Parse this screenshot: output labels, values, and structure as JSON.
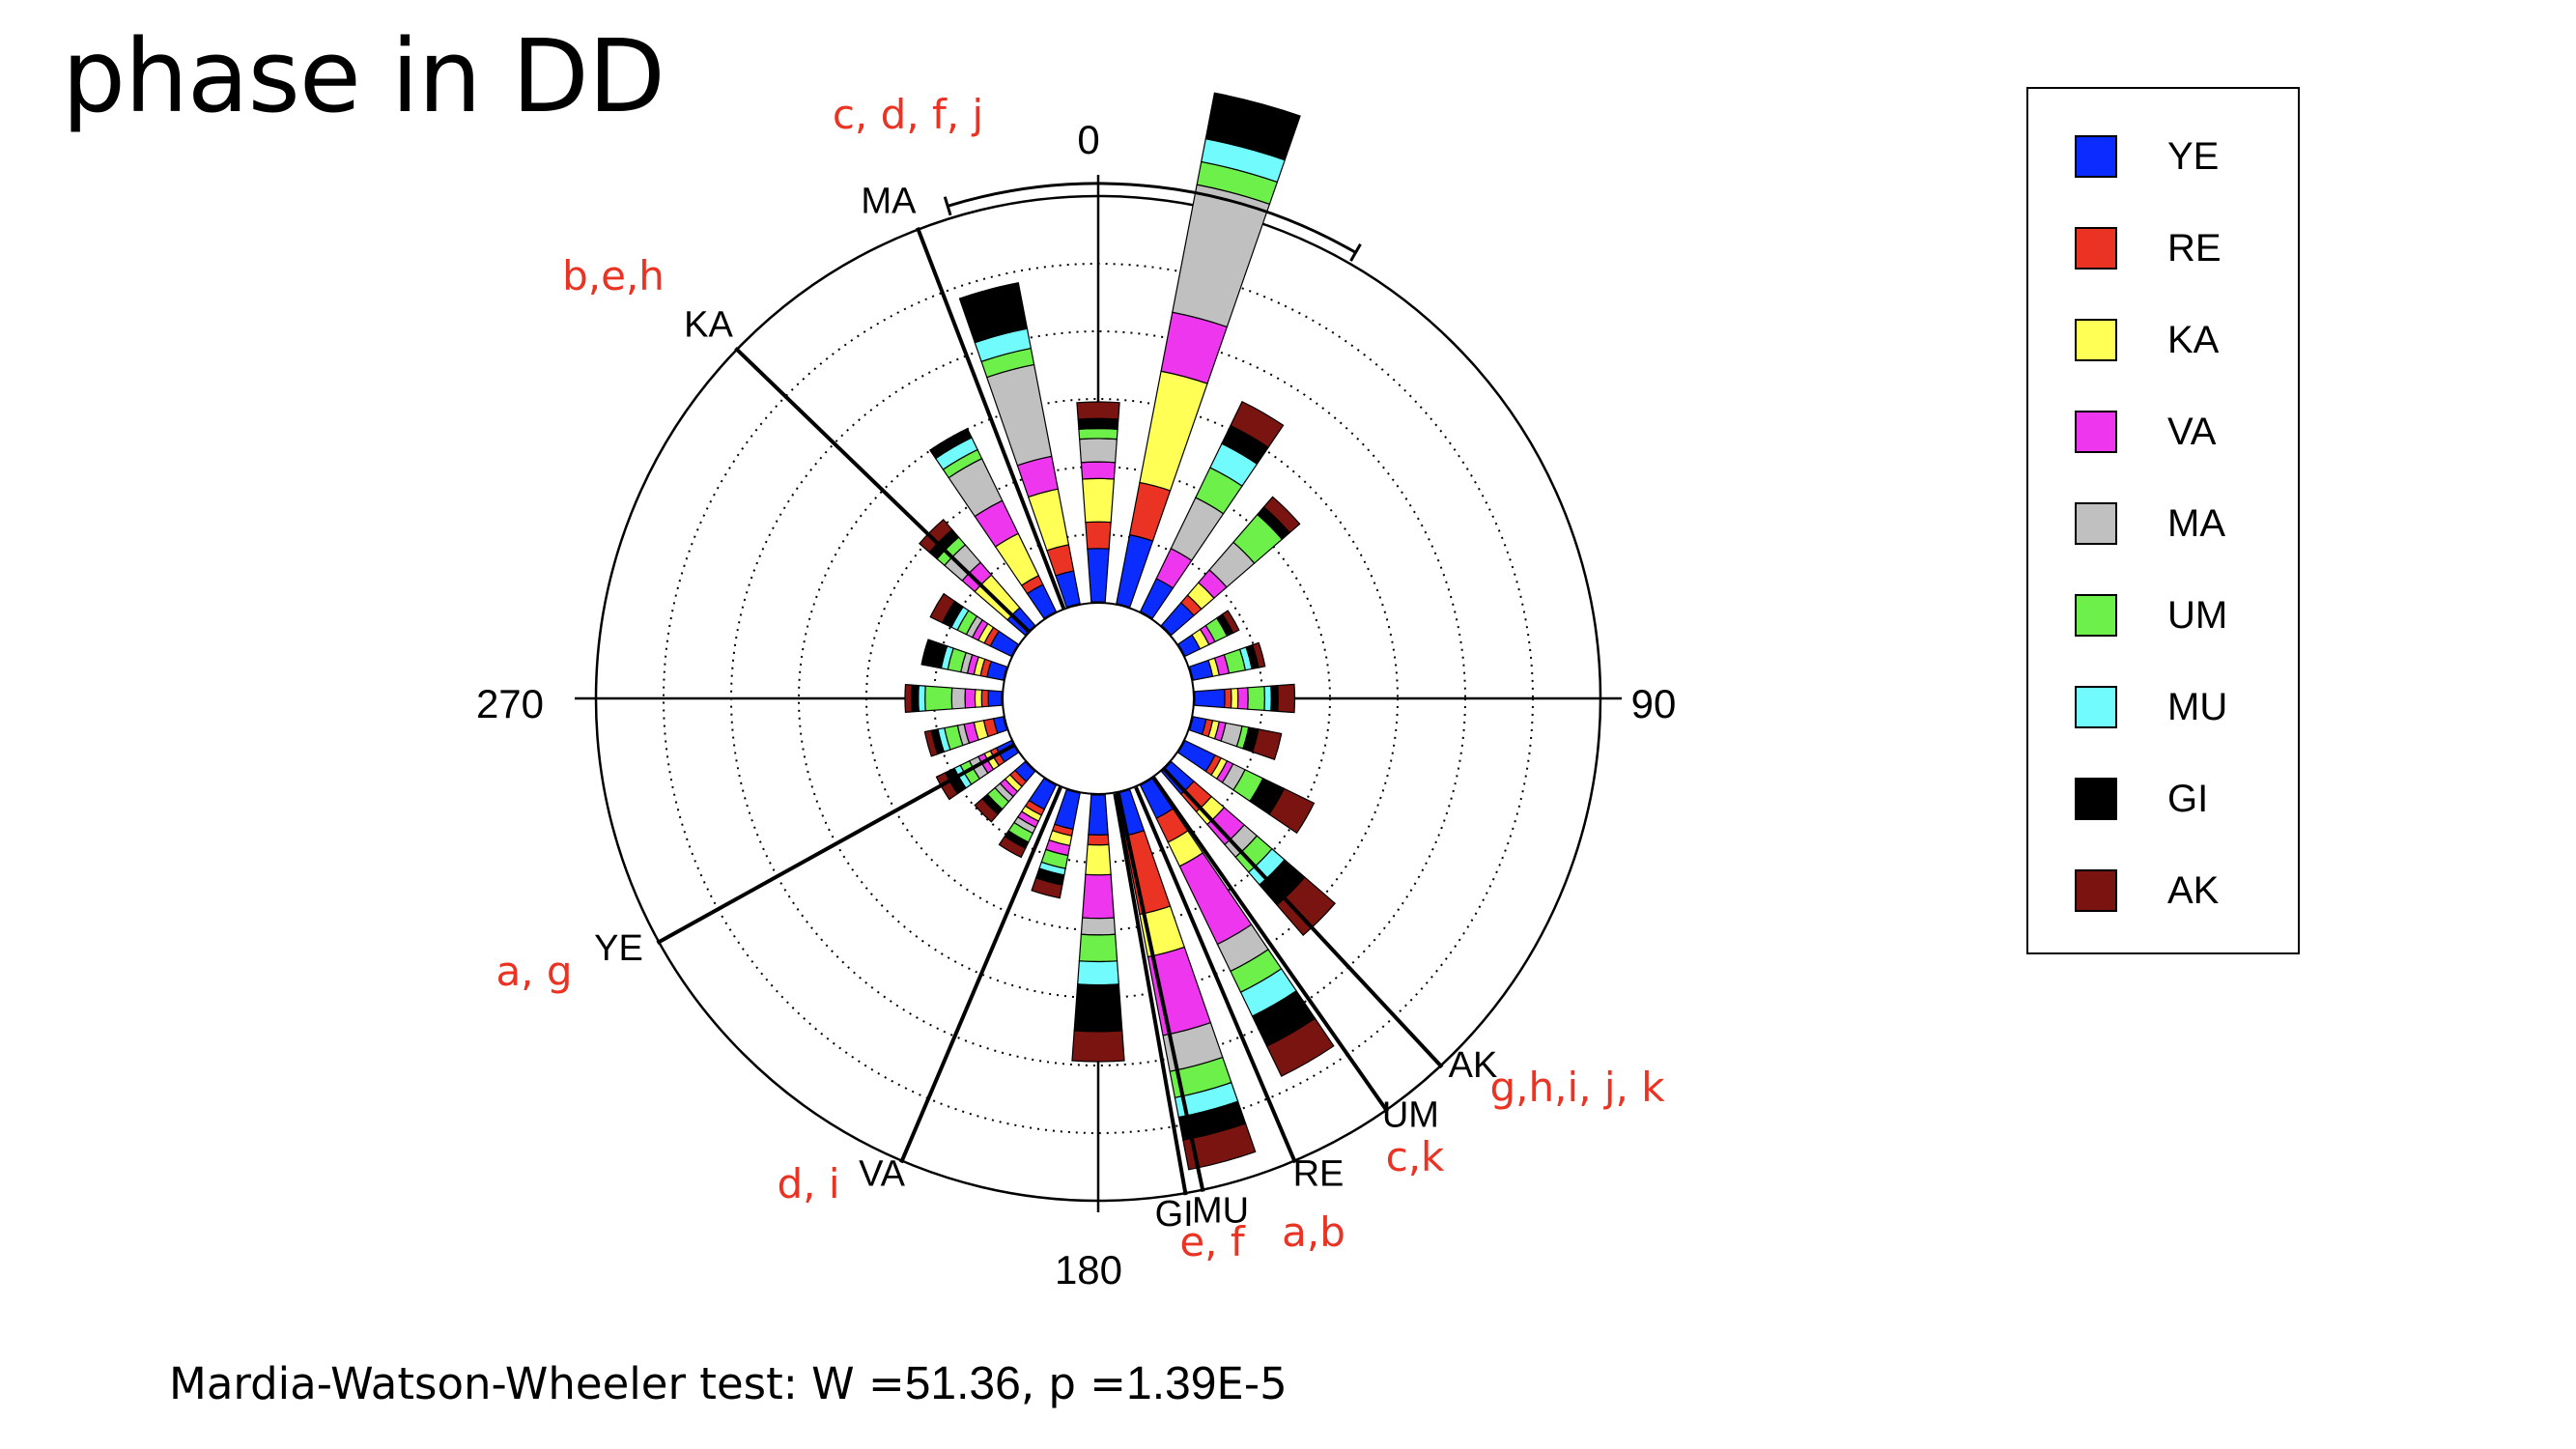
{
  "slide": {
    "title": "phase in DD",
    "footer_prefix": "Mardia-Watson-Wheeler test: W =",
    "footer_w": "51.36",
    "footer_mid": ", p =",
    "footer_p_mantissa": "1.39",
    "footer_p_exp": "E-5"
  },
  "colors": {
    "YE": "#0a2cff",
    "RE": "#ea3323",
    "KA": "#ffff55",
    "VA": "#ee36ee",
    "MA": "#c0c0c0",
    "UM": "#6ef04a",
    "MU": "#72fbfd",
    "GI": "#000000",
    "AK": "#7a1410",
    "annotation": "#ea3323"
  },
  "legend": [
    {
      "label": "YE",
      "color": "#0a2cff"
    },
    {
      "label": "RE",
      "color": "#ea3323"
    },
    {
      "label": "KA",
      "color": "#ffff55"
    },
    {
      "label": "VA",
      "color": "#ee36ee"
    },
    {
      "label": "MA",
      "color": "#c0c0c0"
    },
    {
      "label": "UM",
      "color": "#6ef04a"
    },
    {
      "label": "MU",
      "color": "#72fbfd"
    },
    {
      "label": "GI",
      "color": "#000000"
    },
    {
      "label": "AK",
      "color": "#7a1410"
    }
  ],
  "chart_data": {
    "type": "polar-stacked-bar",
    "title": "",
    "angle_labels": [
      {
        "angle": 0,
        "text": "0"
      },
      {
        "angle": 90,
        "text": "90"
      },
      {
        "angle": 180,
        "text": "180"
      },
      {
        "angle": 270,
        "text": "270"
      }
    ],
    "series_order": [
      "YE",
      "RE",
      "KA",
      "VA",
      "MA",
      "UM",
      "MU",
      "GI",
      "AK"
    ],
    "bin_width_deg": 15,
    "bins": [
      {
        "angle": 0,
        "segments": [
          [
            "YE",
            16
          ],
          [
            "RE",
            8
          ],
          [
            "KA",
            13
          ],
          [
            "VA",
            5
          ],
          [
            "MA",
            7
          ],
          [
            "UM",
            3
          ],
          [
            "GI",
            3
          ],
          [
            "AK",
            5
          ]
        ]
      },
      {
        "angle": 15,
        "segments": [
          [
            "YE",
            21
          ],
          [
            "RE",
            16
          ],
          [
            "KA",
            34
          ],
          [
            "VA",
            18
          ],
          [
            "MA",
            39
          ],
          [
            "UM",
            7
          ],
          [
            "MU",
            7
          ],
          [
            "GI",
            14
          ]
        ]
      },
      {
        "angle": 30,
        "segments": [
          [
            "YE",
            11
          ],
          [
            "VA",
            10
          ],
          [
            "MA",
            17
          ],
          [
            "UM",
            10
          ],
          [
            "MU",
            8
          ],
          [
            "GI",
            6
          ],
          [
            "AK",
            8
          ]
        ]
      },
      {
        "angle": 45,
        "segments": [
          [
            "YE",
            9
          ],
          [
            "RE",
            3
          ],
          [
            "KA",
            5
          ],
          [
            "VA",
            5
          ],
          [
            "MA",
            11
          ],
          [
            "UM",
            11
          ],
          [
            "GI",
            3
          ],
          [
            "AK",
            4
          ]
        ]
      },
      {
        "angle": 60,
        "segments": [
          [
            "YE",
            5
          ],
          [
            "KA",
            3
          ],
          [
            "VA",
            2
          ],
          [
            "UM",
            4
          ],
          [
            "GI",
            2
          ],
          [
            "AK",
            2
          ]
        ]
      },
      {
        "angle": 75,
        "segments": [
          [
            "YE",
            6
          ],
          [
            "KA",
            2
          ],
          [
            "VA",
            3
          ],
          [
            "UM",
            5
          ],
          [
            "MU",
            2
          ],
          [
            "GI",
            2
          ],
          [
            "AK",
            2
          ]
        ]
      },
      {
        "angle": 90,
        "segments": [
          [
            "YE",
            9
          ],
          [
            "RE",
            2
          ],
          [
            "KA",
            2
          ],
          [
            "VA",
            3
          ],
          [
            "UM",
            5
          ],
          [
            "MU",
            2
          ],
          [
            "GI",
            2
          ],
          [
            "AK",
            5
          ]
        ]
      },
      {
        "angle": 105,
        "segments": [
          [
            "YE",
            4
          ],
          [
            "RE",
            2
          ],
          [
            "KA",
            2
          ],
          [
            "VA",
            2
          ],
          [
            "MA",
            5
          ],
          [
            "UM",
            2
          ],
          [
            "GI",
            3
          ],
          [
            "AK",
            7
          ]
        ]
      },
      {
        "angle": 120,
        "segments": [
          [
            "YE",
            10
          ],
          [
            "RE",
            2
          ],
          [
            "KA",
            2
          ],
          [
            "VA",
            2
          ],
          [
            "MA",
            4
          ],
          [
            "UM",
            6
          ],
          [
            "GI",
            7
          ],
          [
            "AK",
            10
          ]
        ]
      },
      {
        "angle": 135,
        "segments": [
          [
            "YE",
            9
          ],
          [
            "RE",
            7
          ],
          [
            "KA",
            5
          ],
          [
            "VA",
            8
          ],
          [
            "MA",
            5
          ],
          [
            "UM",
            6
          ],
          [
            "MU",
            5
          ],
          [
            "GI",
            8
          ],
          [
            "AK",
            12
          ]
        ]
      },
      {
        "angle": 150,
        "segments": [
          [
            "YE",
            11
          ],
          [
            "RE",
            8
          ],
          [
            "KA",
            8
          ],
          [
            "VA",
            26
          ],
          [
            "MA",
            9
          ],
          [
            "UM",
            7
          ],
          [
            "MU",
            8
          ],
          [
            "GI",
            10
          ],
          [
            "AK",
            10
          ]
        ]
      },
      {
        "angle": 165,
        "segments": [
          [
            "YE",
            13
          ],
          [
            "RE",
            24
          ],
          [
            "KA",
            13
          ],
          [
            "VA",
            24
          ],
          [
            "MA",
            11
          ],
          [
            "UM",
            8
          ],
          [
            "MU",
            6
          ],
          [
            "GI",
            7
          ],
          [
            "AK",
            9
          ]
        ]
      },
      {
        "angle": 180,
        "segments": [
          [
            "YE",
            12
          ],
          [
            "RE",
            3
          ],
          [
            "KA",
            9
          ],
          [
            "VA",
            13
          ],
          [
            "MA",
            5
          ],
          [
            "UM",
            8
          ],
          [
            "MU",
            7
          ],
          [
            "GI",
            14
          ],
          [
            "AK",
            9
          ]
        ]
      },
      {
        "angle": 195,
        "segments": [
          [
            "YE",
            11
          ],
          [
            "RE",
            2
          ],
          [
            "KA",
            3
          ],
          [
            "VA",
            3
          ],
          [
            "UM",
            4
          ],
          [
            "MU",
            2
          ],
          [
            "GI",
            3
          ],
          [
            "AK",
            4
          ]
        ]
      },
      {
        "angle": 210,
        "segments": [
          [
            "YE",
            8
          ],
          [
            "RE",
            2
          ],
          [
            "KA",
            2
          ],
          [
            "VA",
            2
          ],
          [
            "MA",
            2
          ],
          [
            "UM",
            3
          ],
          [
            "GI",
            2
          ],
          [
            "AK",
            3
          ]
        ]
      },
      {
        "angle": 225,
        "segments": [
          [
            "YE",
            4
          ],
          [
            "RE",
            2
          ],
          [
            "KA",
            2
          ],
          [
            "VA",
            2
          ],
          [
            "MA",
            2
          ],
          [
            "UM",
            3
          ],
          [
            "GI",
            2
          ],
          [
            "AK",
            3
          ]
        ]
      },
      {
        "angle": 240,
        "segments": [
          [
            "YE",
            5
          ],
          [
            "RE",
            2
          ],
          [
            "KA",
            2
          ],
          [
            "VA",
            2
          ],
          [
            "MA",
            3
          ],
          [
            "UM",
            3
          ],
          [
            "MU",
            2
          ],
          [
            "GI",
            3
          ],
          [
            "AK",
            3
          ]
        ]
      },
      {
        "angle": 255,
        "segments": [
          [
            "YE",
            3
          ],
          [
            "RE",
            3
          ],
          [
            "KA",
            3
          ],
          [
            "VA",
            3
          ],
          [
            "MA",
            2
          ],
          [
            "UM",
            4
          ],
          [
            "MU",
            2
          ],
          [
            "GI",
            2
          ],
          [
            "AK",
            2
          ]
        ]
      },
      {
        "angle": 270,
        "segments": [
          [
            "YE",
            4
          ],
          [
            "RE",
            2
          ],
          [
            "KA",
            2
          ],
          [
            "VA",
            3
          ],
          [
            "MA",
            4
          ],
          [
            "UM",
            8
          ],
          [
            "MU",
            2
          ],
          [
            "GI",
            2
          ],
          [
            "AK",
            2
          ]
        ]
      },
      {
        "angle": 285,
        "segments": [
          [
            "YE",
            5
          ],
          [
            "RE",
            2
          ],
          [
            "KA",
            2
          ],
          [
            "VA",
            2
          ],
          [
            "MA",
            2
          ],
          [
            "UM",
            4
          ],
          [
            "MU",
            2
          ],
          [
            "GI",
            6
          ]
        ]
      },
      {
        "angle": 300,
        "segments": [
          [
            "YE",
            7
          ],
          [
            "RE",
            2
          ],
          [
            "KA",
            2
          ],
          [
            "VA",
            2
          ],
          [
            "MA",
            2
          ],
          [
            "UM",
            3
          ],
          [
            "MU",
            2
          ],
          [
            "GI",
            3
          ],
          [
            "AK",
            4
          ]
        ]
      },
      {
        "angle": 315,
        "segments": [
          [
            "YE",
            7
          ],
          [
            "KA",
            13
          ],
          [
            "VA",
            5
          ],
          [
            "MA",
            7
          ],
          [
            "UM",
            3
          ],
          [
            "GI",
            3
          ],
          [
            "AK",
            4
          ]
        ]
      },
      {
        "angle": 330,
        "segments": [
          [
            "YE",
            9
          ],
          [
            "RE",
            3
          ],
          [
            "KA",
            14
          ],
          [
            "VA",
            11
          ],
          [
            "MA",
            14
          ],
          [
            "UM",
            3
          ],
          [
            "MU",
            4
          ],
          [
            "GI",
            3
          ]
        ]
      },
      {
        "angle": 345,
        "segments": [
          [
            "YE",
            10
          ],
          [
            "RE",
            8
          ],
          [
            "KA",
            17
          ],
          [
            "VA",
            10
          ],
          [
            "MA",
            28
          ],
          [
            "UM",
            5
          ],
          [
            "MU",
            6
          ],
          [
            "GI",
            14
          ]
        ]
      }
    ],
    "mean_vectors": [
      {
        "label": "MA",
        "angle": 339,
        "group": "c, d, f, j"
      },
      {
        "label": "KA",
        "angle": 314,
        "group": "b,e,h"
      },
      {
        "label": "YE",
        "angle": 241,
        "group": "a, g"
      },
      {
        "label": "VA",
        "angle": 203,
        "group": "d, i"
      },
      {
        "label": "GI",
        "angle": 170,
        "group": ""
      },
      {
        "label": "MU",
        "angle": 168,
        "group": "e, f"
      },
      {
        "label": "RE",
        "angle": 157,
        "group": "a,b"
      },
      {
        "label": "UM",
        "angle": 145,
        "group": "c,k"
      },
      {
        "label": "AK",
        "angle": 137,
        "group": "g,h,i, j, k"
      }
    ],
    "confidence_arc": {
      "start": 343,
      "end": 30
    },
    "grid": true,
    "legend_position": "right"
  }
}
